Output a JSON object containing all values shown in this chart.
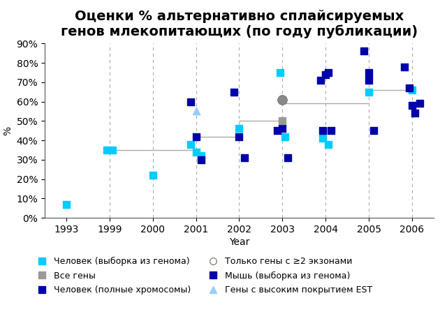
{
  "title": "Оценки % альтернативно сплайсируемых\nгенов млекопитающих (по году публикации)",
  "xlabel": "Year",
  "ylabel": "%",
  "ylim": [
    0,
    90
  ],
  "yticks": [
    0,
    10,
    20,
    30,
    40,
    50,
    60,
    70,
    80,
    90
  ],
  "ytick_labels": [
    "0%",
    "10%",
    "20%",
    "30%",
    "40%",
    "50%",
    "60%",
    "70%",
    "80%",
    "90%"
  ],
  "xtick_labels": [
    "1993",
    "1999",
    "2000",
    "2001",
    "2002",
    "2003",
    "2004",
    "2005",
    "2006"
  ],
  "bg_color": "#ffffff",
  "cyan_color": "#00CCFF",
  "dark_blue_color": "#0000AA",
  "gray_color": "#999999",
  "gray_circle_color": "#888888",
  "triangle_color": "#99CCFF",
  "human_genome_sample": {
    "x": [
      0,
      1,
      1,
      2,
      3,
      3,
      3,
      4,
      5,
      5,
      6,
      6,
      7,
      8
    ],
    "y": [
      7,
      35,
      35,
      22,
      38,
      34,
      32,
      46,
      75,
      42,
      41,
      38,
      65,
      66
    ]
  },
  "human_full_chromosomes": {
    "x": [
      3,
      3,
      3,
      4,
      4,
      4,
      5,
      5,
      5,
      6,
      6,
      6,
      7,
      7,
      7,
      8,
      8,
      8,
      8
    ],
    "y": [
      60,
      42,
      30,
      65,
      42,
      31,
      45,
      46,
      31,
      71,
      74,
      45,
      86,
      71,
      45,
      78,
      67,
      54,
      59
    ]
  },
  "mouse_genome_sample": {
    "x": [
      6,
      6,
      7,
      8
    ],
    "y": [
      45,
      75,
      75,
      58
    ]
  },
  "all_genes": {
    "x": [
      5
    ],
    "y": [
      50
    ]
  },
  "only_2plus_exons": {
    "x": [
      5
    ],
    "y": [
      61
    ]
  },
  "high_est": {
    "x": [
      3
    ],
    "y": [
      55
    ]
  },
  "hlines": [
    {
      "xmin": 1,
      "xmax": 2,
      "y": 35
    },
    {
      "xmin": 2,
      "xmax": 3,
      "y": 35
    },
    {
      "xmin": 3,
      "xmax": 4,
      "y": 42
    },
    {
      "xmin": 4,
      "xmax": 5,
      "y": 50
    },
    {
      "xmin": 5,
      "xmax": 6,
      "y": 59
    },
    {
      "xmin": 6,
      "xmax": 7,
      "y": 59
    },
    {
      "xmin": 7,
      "xmax": 8,
      "y": 66
    }
  ],
  "legend_labels": [
    "Человек (выборка из генома)",
    "Человек (полные хромосомы)",
    "Мышь (выборка из генома)",
    "Все гены",
    "Только гены с ≥2 экзонами",
    "Гены с высоким покрытием EST"
  ],
  "title_fontsize": 14,
  "axis_fontsize": 10,
  "legend_fontsize": 9
}
